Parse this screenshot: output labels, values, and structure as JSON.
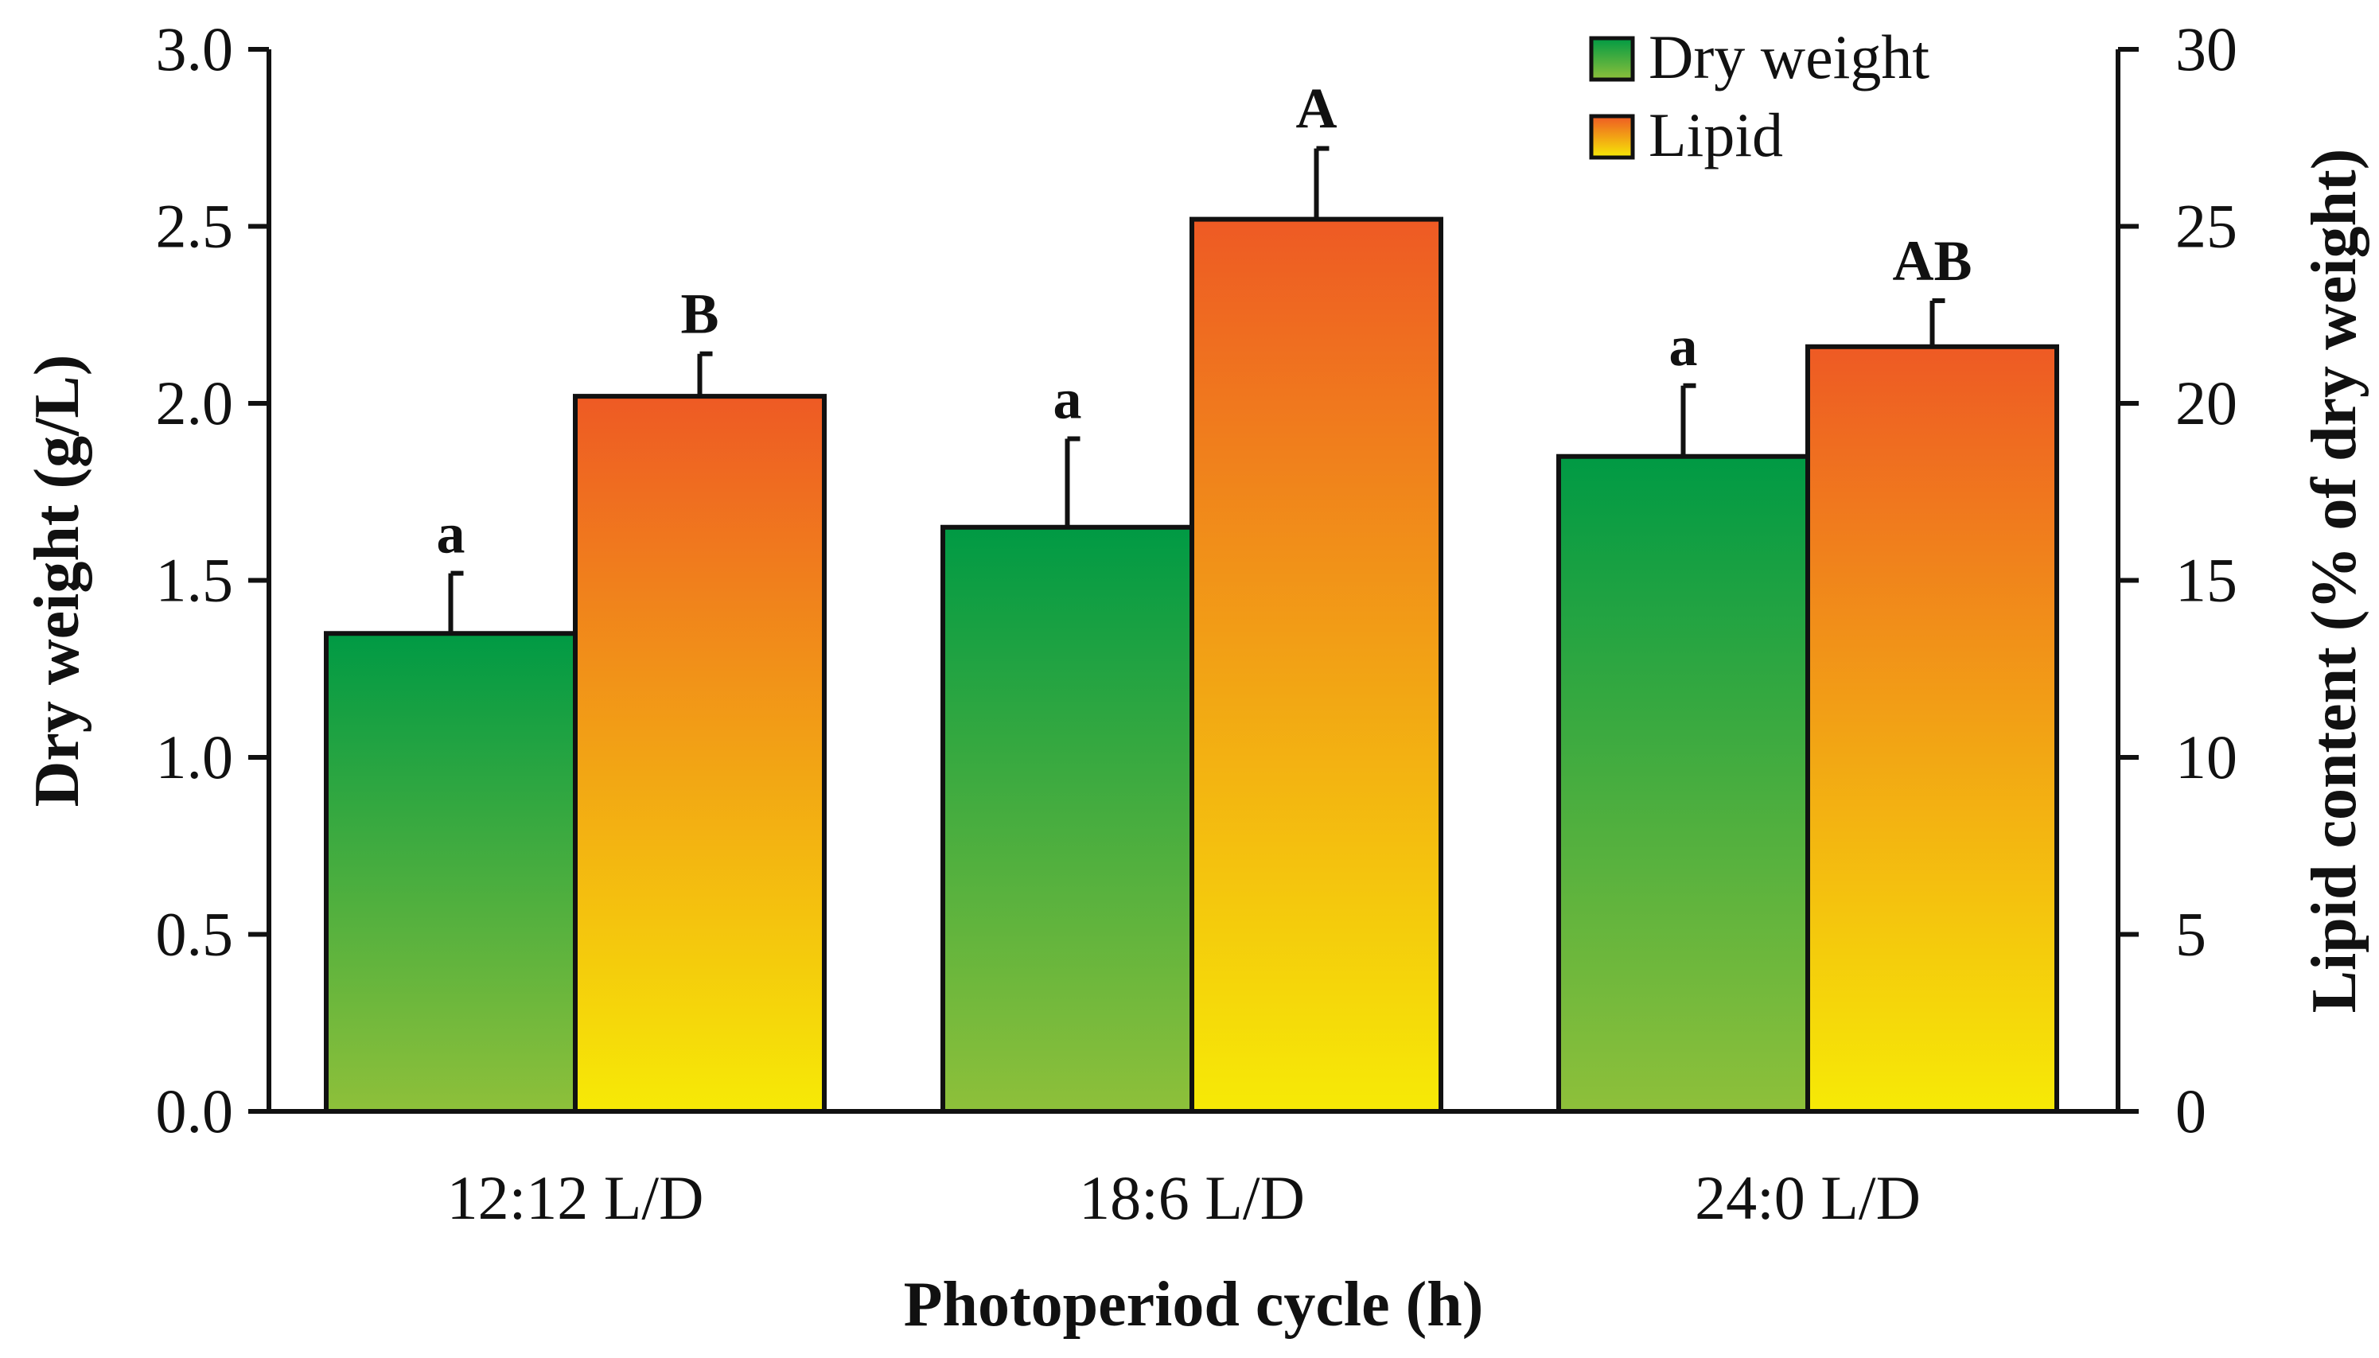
{
  "chart_data": {
    "type": "bar",
    "categories": [
      "12:12 L/D",
      "18:6 L/D",
      "24:0 L/D"
    ],
    "series": [
      {
        "name": "Dry weight",
        "axis": "left",
        "values": [
          1.35,
          1.65,
          1.85
        ],
        "errors": [
          0.17,
          0.25,
          0.2
        ],
        "significance": [
          "a",
          "a",
          "a"
        ],
        "gradient": [
          "#009a44",
          "#8ec03a"
        ]
      },
      {
        "name": "Lipid",
        "axis": "right",
        "values": [
          20.2,
          25.2,
          21.6
        ],
        "errors": [
          1.2,
          2.0,
          1.3
        ],
        "significance": [
          "B",
          "A",
          "AB"
        ],
        "gradient": [
          "#ee5a24",
          "#f6ea06"
        ]
      }
    ],
    "xlabel": "Photoperiod cycle (h)",
    "ylabel": "Dry weight (g/L)",
    "y2label": "Lipid content (% of dry weight)",
    "ylim": [
      0,
      3.0
    ],
    "y2lim": [
      0,
      30
    ],
    "yticks": [
      "0.0",
      "0.5",
      "1.0",
      "1.5",
      "2.0",
      "2.5",
      "3.0"
    ],
    "y2ticks": [
      "0",
      "5",
      "10",
      "15",
      "20",
      "25",
      "30"
    ],
    "legend": {
      "position": "top-right-inside",
      "entries": [
        "Dry weight",
        "Lipid"
      ]
    },
    "grid": false
  }
}
